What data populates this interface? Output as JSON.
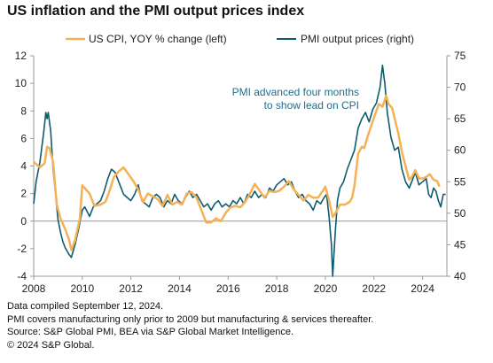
{
  "title": "US inflation and the PMI output prices index",
  "footer": [
    "Data compiled September 12, 2024.",
    "PMI covers manufacturing only prior to 2009 but manufacturing & services thereafter.",
    "Source: S&P Global PMI, BEA via S&P Global Market Intelligence.",
    "© 2024 S&P Global."
  ],
  "colors": {
    "cpi": "#F5B155",
    "pmi": "#0E5C70",
    "annotation": "#1F6F8B",
    "axis": "#999999"
  },
  "chart_data": {
    "type": "line",
    "annotation": [
      "PMI advanced four months",
      "to show lead on CPI"
    ],
    "x_ticks": [
      "2008",
      "2010",
      "2012",
      "2014",
      "2016",
      "2018",
      "2020",
      "2022",
      "2024"
    ],
    "xlim": [
      2008,
      2025.0
    ],
    "left_axis": {
      "ylim": [
        -4,
        12
      ],
      "ticks": [
        "-4",
        "-2",
        "0",
        "2",
        "4",
        "6",
        "8",
        "10",
        "12"
      ]
    },
    "right_axis": {
      "ylim": [
        40,
        75
      ],
      "ticks": [
        "40",
        "45",
        "50",
        "55",
        "60",
        "65",
        "70",
        "75"
      ]
    },
    "grid": false,
    "legend_position": "top",
    "series": [
      {
        "name": "US CPI, YOY % change (left)",
        "axis": "left",
        "points": [
          [
            2008.0,
            4.3
          ],
          [
            2008.25,
            3.9
          ],
          [
            2008.45,
            4.2
          ],
          [
            2008.55,
            5.4
          ],
          [
            2008.65,
            5.3
          ],
          [
            2008.8,
            4.3
          ],
          [
            2008.95,
            1.2
          ],
          [
            2009.1,
            0.2
          ],
          [
            2009.3,
            -0.6
          ],
          [
            2009.45,
            -1.3
          ],
          [
            2009.55,
            -2.1
          ],
          [
            2009.7,
            -1.4
          ],
          [
            2009.9,
            0.2
          ],
          [
            2010.0,
            2.6
          ],
          [
            2010.15,
            2.3
          ],
          [
            2010.3,
            2.0
          ],
          [
            2010.5,
            1.1
          ],
          [
            2010.75,
            1.2
          ],
          [
            2010.95,
            1.4
          ],
          [
            2011.1,
            2.1
          ],
          [
            2011.3,
            3.2
          ],
          [
            2011.5,
            3.6
          ],
          [
            2011.7,
            3.9
          ],
          [
            2011.9,
            3.4
          ],
          [
            2012.1,
            2.9
          ],
          [
            2012.3,
            2.3
          ],
          [
            2012.5,
            1.4
          ],
          [
            2012.7,
            2.0
          ],
          [
            2012.9,
            1.8
          ],
          [
            2013.1,
            1.6
          ],
          [
            2013.3,
            1.1
          ],
          [
            2013.5,
            1.9
          ],
          [
            2013.7,
            1.2
          ],
          [
            2013.9,
            1.4
          ],
          [
            2014.1,
            1.2
          ],
          [
            2014.3,
            2.0
          ],
          [
            2014.5,
            2.1
          ],
          [
            2014.7,
            1.7
          ],
          [
            2014.9,
            0.8
          ],
          [
            2015.1,
            -0.1
          ],
          [
            2015.3,
            -0.1
          ],
          [
            2015.5,
            0.2
          ],
          [
            2015.7,
            0.0
          ],
          [
            2015.9,
            0.6
          ],
          [
            2016.1,
            1.0
          ],
          [
            2016.3,
            1.1
          ],
          [
            2016.5,
            1.0
          ],
          [
            2016.7,
            1.4
          ],
          [
            2016.9,
            2.0
          ],
          [
            2017.1,
            2.7
          ],
          [
            2017.3,
            2.2
          ],
          [
            2017.5,
            1.7
          ],
          [
            2017.7,
            2.2
          ],
          [
            2017.9,
            2.1
          ],
          [
            2018.1,
            2.2
          ],
          [
            2018.3,
            2.5
          ],
          [
            2018.5,
            2.9
          ],
          [
            2018.7,
            2.3
          ],
          [
            2018.9,
            1.9
          ],
          [
            2019.1,
            1.5
          ],
          [
            2019.3,
            1.9
          ],
          [
            2019.5,
            1.7
          ],
          [
            2019.7,
            1.7
          ],
          [
            2019.9,
            2.2
          ],
          [
            2020.0,
            2.5
          ],
          [
            2020.15,
            1.5
          ],
          [
            2020.3,
            0.3
          ],
          [
            2020.45,
            0.7
          ],
          [
            2020.6,
            1.2
          ],
          [
            2020.8,
            1.2
          ],
          [
            2021.0,
            1.4
          ],
          [
            2021.1,
            1.7
          ],
          [
            2021.2,
            2.6
          ],
          [
            2021.35,
            4.9
          ],
          [
            2021.5,
            5.4
          ],
          [
            2021.6,
            5.3
          ],
          [
            2021.75,
            6.2
          ],
          [
            2021.9,
            7.0
          ],
          [
            2022.0,
            7.5
          ],
          [
            2022.2,
            8.5
          ],
          [
            2022.35,
            8.3
          ],
          [
            2022.5,
            9.1
          ],
          [
            2022.6,
            8.5
          ],
          [
            2022.75,
            8.2
          ],
          [
            2022.9,
            7.1
          ],
          [
            2023.0,
            6.4
          ],
          [
            2023.15,
            5.0
          ],
          [
            2023.3,
            4.0
          ],
          [
            2023.45,
            3.0
          ],
          [
            2023.55,
            3.2
          ],
          [
            2023.7,
            3.7
          ],
          [
            2023.85,
            3.1
          ],
          [
            2024.0,
            3.1
          ],
          [
            2024.15,
            3.2
          ],
          [
            2024.3,
            3.4
          ],
          [
            2024.45,
            3.0
          ],
          [
            2024.6,
            2.9
          ],
          [
            2024.7,
            2.5
          ]
        ]
      },
      {
        "name": "PMI output prices (right)",
        "axis": "right",
        "points": [
          [
            2008.0,
            51.5
          ],
          [
            2008.1,
            55.0
          ],
          [
            2008.25,
            58.0
          ],
          [
            2008.4,
            62.5
          ],
          [
            2008.5,
            66.0
          ],
          [
            2008.55,
            65.0
          ],
          [
            2008.6,
            66.0
          ],
          [
            2008.7,
            63.0
          ],
          [
            2008.8,
            57.0
          ],
          [
            2008.9,
            53.0
          ],
          [
            2009.0,
            49.0
          ],
          [
            2009.1,
            47.0
          ],
          [
            2009.2,
            45.5
          ],
          [
            2009.3,
            44.5
          ],
          [
            2009.45,
            43.5
          ],
          [
            2009.55,
            43.0
          ],
          [
            2009.7,
            45.0
          ],
          [
            2009.85,
            47.5
          ],
          [
            2010.0,
            50.5
          ],
          [
            2010.1,
            51.0
          ],
          [
            2010.3,
            49.5
          ],
          [
            2010.45,
            51.0
          ],
          [
            2010.6,
            51.5
          ],
          [
            2010.75,
            52.0
          ],
          [
            2010.9,
            53.5
          ],
          [
            2011.05,
            55.5
          ],
          [
            2011.2,
            57.0
          ],
          [
            2011.35,
            56.5
          ],
          [
            2011.5,
            55.0
          ],
          [
            2011.7,
            53.0
          ],
          [
            2011.85,
            52.5
          ],
          [
            2012.0,
            52.0
          ],
          [
            2012.15,
            53.0
          ],
          [
            2012.3,
            54.5
          ],
          [
            2012.45,
            52.0
          ],
          [
            2012.6,
            51.5
          ],
          [
            2012.75,
            51.0
          ],
          [
            2012.9,
            52.5
          ],
          [
            2013.05,
            53.0
          ],
          [
            2013.2,
            52.5
          ],
          [
            2013.35,
            51.0
          ],
          [
            2013.5,
            52.0
          ],
          [
            2013.65,
            51.5
          ],
          [
            2013.8,
            53.0
          ],
          [
            2013.95,
            52.0
          ],
          [
            2014.1,
            51.5
          ],
          [
            2014.25,
            52.5
          ],
          [
            2014.4,
            53.5
          ],
          [
            2014.55,
            52.5
          ],
          [
            2014.7,
            53.0
          ],
          [
            2014.85,
            52.0
          ],
          [
            2015.0,
            51.0
          ],
          [
            2015.15,
            51.5
          ],
          [
            2015.3,
            50.5
          ],
          [
            2015.45,
            51.5
          ],
          [
            2015.6,
            52.0
          ],
          [
            2015.75,
            51.0
          ],
          [
            2015.9,
            51.5
          ],
          [
            2016.05,
            51.0
          ],
          [
            2016.2,
            52.0
          ],
          [
            2016.35,
            51.5
          ],
          [
            2016.5,
            52.5
          ],
          [
            2016.65,
            51.5
          ],
          [
            2016.8,
            53.0
          ],
          [
            2016.95,
            52.5
          ],
          [
            2017.1,
            53.5
          ],
          [
            2017.25,
            52.5
          ],
          [
            2017.4,
            53.0
          ],
          [
            2017.55,
            52.5
          ],
          [
            2017.7,
            54.0
          ],
          [
            2017.85,
            53.5
          ],
          [
            2018.0,
            54.5
          ],
          [
            2018.15,
            55.0
          ],
          [
            2018.3,
            55.5
          ],
          [
            2018.45,
            54.5
          ],
          [
            2018.6,
            55.0
          ],
          [
            2018.75,
            53.5
          ],
          [
            2018.9,
            52.5
          ],
          [
            2019.05,
            53.0
          ],
          [
            2019.2,
            52.0
          ],
          [
            2019.35,
            51.5
          ],
          [
            2019.5,
            50.5
          ],
          [
            2019.65,
            52.0
          ],
          [
            2019.8,
            51.5
          ],
          [
            2019.95,
            52.5
          ],
          [
            2020.05,
            53.0
          ],
          [
            2020.15,
            49.5
          ],
          [
            2020.25,
            45.0
          ],
          [
            2020.3,
            40.0
          ],
          [
            2020.4,
            46.5
          ],
          [
            2020.5,
            52.0
          ],
          [
            2020.6,
            54.0
          ],
          [
            2020.75,
            55.0
          ],
          [
            2020.9,
            57.0
          ],
          [
            2021.05,
            58.5
          ],
          [
            2021.2,
            60.0
          ],
          [
            2021.35,
            63.5
          ],
          [
            2021.5,
            65.0
          ],
          [
            2021.65,
            66.0
          ],
          [
            2021.8,
            64.5
          ],
          [
            2021.95,
            66.5
          ],
          [
            2022.1,
            67.5
          ],
          [
            2022.25,
            70.0
          ],
          [
            2022.35,
            73.5
          ],
          [
            2022.4,
            72.0
          ],
          [
            2022.45,
            70.5
          ],
          [
            2022.55,
            66.0
          ],
          [
            2022.7,
            62.0
          ],
          [
            2022.85,
            60.0
          ],
          [
            2023.0,
            60.5
          ],
          [
            2023.15,
            57.0
          ],
          [
            2023.3,
            55.0
          ],
          [
            2023.45,
            54.0
          ],
          [
            2023.55,
            55.0
          ],
          [
            2023.7,
            56.5
          ],
          [
            2023.85,
            54.5
          ],
          [
            2024.0,
            55.0
          ],
          [
            2024.15,
            55.5
          ],
          [
            2024.25,
            53.0
          ],
          [
            2024.35,
            52.5
          ],
          [
            2024.45,
            54.0
          ],
          [
            2024.55,
            53.5
          ],
          [
            2024.65,
            52.0
          ],
          [
            2024.75,
            51.0
          ],
          [
            2024.85,
            53.0
          ],
          [
            2024.95,
            53.0
          ]
        ]
      }
    ]
  }
}
